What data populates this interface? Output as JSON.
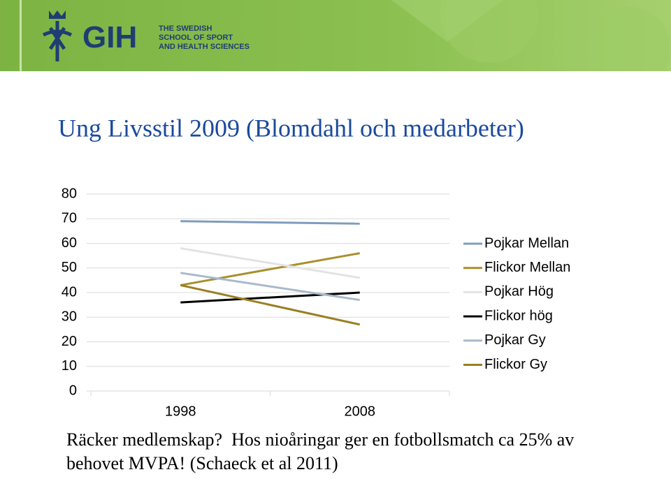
{
  "header": {
    "logo": "GIH",
    "tagline": [
      "THE SWEDISH",
      "SCHOOL OF SPORT",
      "AND HEALTH SCIENCES"
    ]
  },
  "chart_data": {
    "type": "line",
    "title": "Ung Livsstil 2009 (Blomdahl och medarbeter)",
    "categories": [
      "1998",
      "2008"
    ],
    "series": [
      {
        "name": "Pojkar Mellan",
        "color": "#7f9cbd",
        "values": [
          69,
          68
        ]
      },
      {
        "name": "Flickor Mellan",
        "color": "#a8902c",
        "values": [
          43,
          56
        ]
      },
      {
        "name": "Pojkar Hög",
        "color": "#e3e3e3",
        "values": [
          58,
          46
        ]
      },
      {
        "name": "Flickor hög",
        "color": "#000000",
        "values": [
          36,
          40
        ]
      },
      {
        "name": "Pojkar Gy",
        "color": "#a9b9cb",
        "values": [
          48,
          37
        ]
      },
      {
        "name": "Flickor Gy",
        "color": "#9a7f22",
        "values": [
          43,
          27
        ]
      }
    ],
    "ylim": [
      0,
      80
    ],
    "yticks": [
      0,
      10,
      20,
      30,
      40,
      50,
      60,
      70,
      80
    ],
    "grid": true,
    "legend": "right"
  },
  "caption": "Räcker medlemskap?  Hos nioåringar ger en fotbollsmatch ca 25% av behovet MVPA! (Schaeck et al 2011)"
}
